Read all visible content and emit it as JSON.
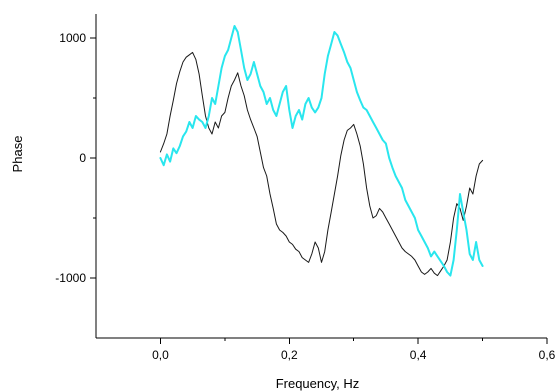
{
  "chart_data": {
    "type": "line",
    "title": "",
    "xlabel": "Frequency, Hz",
    "ylabel": "Phase",
    "xlim": [
      -0.1,
      0.6
    ],
    "ylim": [
      -1500,
      1200
    ],
    "x_ticks": [
      0.0,
      0.2,
      0.4,
      0.6
    ],
    "x_tick_labels": [
      "0,0",
      "0,2",
      "0,4",
      "0,6"
    ],
    "y_ticks": [
      1000,
      0,
      -1000
    ],
    "y_tick_labels": [
      "1000",
      "0",
      "-1000"
    ],
    "grid": false,
    "legend": "none",
    "series": [
      {
        "color": "#1a1a1a",
        "x": [
          0.0,
          0.005,
          0.01,
          0.015,
          0.02,
          0.025,
          0.03,
          0.035,
          0.04,
          0.045,
          0.05,
          0.055,
          0.06,
          0.065,
          0.07,
          0.075,
          0.08,
          0.085,
          0.09,
          0.095,
          0.1,
          0.105,
          0.11,
          0.115,
          0.12,
          0.125,
          0.13,
          0.135,
          0.14,
          0.145,
          0.15,
          0.155,
          0.16,
          0.165,
          0.17,
          0.175,
          0.18,
          0.185,
          0.19,
          0.195,
          0.2,
          0.205,
          0.21,
          0.215,
          0.22,
          0.225,
          0.23,
          0.235,
          0.24,
          0.245,
          0.25,
          0.255,
          0.26,
          0.265,
          0.27,
          0.275,
          0.28,
          0.285,
          0.29,
          0.295,
          0.3,
          0.305,
          0.31,
          0.315,
          0.32,
          0.325,
          0.33,
          0.335,
          0.34,
          0.345,
          0.35,
          0.355,
          0.36,
          0.365,
          0.37,
          0.375,
          0.38,
          0.385,
          0.39,
          0.395,
          0.4,
          0.405,
          0.41,
          0.415,
          0.42,
          0.425,
          0.43,
          0.435,
          0.44,
          0.445,
          0.45,
          0.455,
          0.46,
          0.465,
          0.47,
          0.475,
          0.48,
          0.485,
          0.49,
          0.495,
          0.5
        ],
        "y": [
          50,
          120,
          200,
          350,
          480,
          620,
          720,
          800,
          840,
          860,
          880,
          820,
          700,
          520,
          350,
          250,
          200,
          300,
          250,
          350,
          380,
          500,
          600,
          650,
          710,
          600,
          520,
          400,
          320,
          250,
          180,
          50,
          -80,
          -150,
          -300,
          -420,
          -550,
          -600,
          -620,
          -650,
          -700,
          -720,
          -760,
          -780,
          -830,
          -850,
          -870,
          -800,
          -700,
          -750,
          -870,
          -780,
          -600,
          -450,
          -300,
          -150,
          20,
          150,
          230,
          250,
          280,
          200,
          100,
          -50,
          -250,
          -400,
          -500,
          -480,
          -420,
          -450,
          -500,
          -550,
          -600,
          -650,
          -700,
          -750,
          -780,
          -800,
          -820,
          -850,
          -900,
          -950,
          -970,
          -950,
          -920,
          -960,
          -980,
          -940,
          -900,
          -850,
          -700,
          -500,
          -380,
          -420,
          -520,
          -400,
          -250,
          -300,
          -150,
          -50,
          -20
        ]
      },
      {
        "color": "#29e6ee",
        "x": [
          0.0,
          0.005,
          0.01,
          0.015,
          0.02,
          0.025,
          0.03,
          0.035,
          0.04,
          0.045,
          0.05,
          0.055,
          0.06,
          0.065,
          0.07,
          0.075,
          0.08,
          0.085,
          0.09,
          0.095,
          0.1,
          0.105,
          0.11,
          0.115,
          0.12,
          0.125,
          0.13,
          0.135,
          0.14,
          0.145,
          0.15,
          0.155,
          0.16,
          0.165,
          0.17,
          0.175,
          0.18,
          0.185,
          0.19,
          0.195,
          0.2,
          0.205,
          0.21,
          0.215,
          0.22,
          0.225,
          0.23,
          0.235,
          0.24,
          0.245,
          0.25,
          0.255,
          0.26,
          0.265,
          0.27,
          0.275,
          0.28,
          0.285,
          0.29,
          0.295,
          0.3,
          0.305,
          0.31,
          0.315,
          0.32,
          0.325,
          0.33,
          0.335,
          0.34,
          0.345,
          0.35,
          0.355,
          0.36,
          0.365,
          0.37,
          0.375,
          0.38,
          0.385,
          0.39,
          0.395,
          0.4,
          0.405,
          0.41,
          0.415,
          0.42,
          0.425,
          0.43,
          0.435,
          0.44,
          0.445,
          0.45,
          0.455,
          0.46,
          0.465,
          0.47,
          0.475,
          0.48,
          0.485,
          0.49,
          0.495,
          0.5
        ],
        "y": [
          0,
          -60,
          30,
          -30,
          80,
          40,
          100,
          180,
          220,
          300,
          250,
          350,
          320,
          300,
          250,
          350,
          500,
          450,
          600,
          750,
          850,
          900,
          1000,
          1100,
          1050,
          900,
          750,
          650,
          700,
          800,
          700,
          600,
          550,
          450,
          500,
          400,
          350,
          450,
          550,
          600,
          400,
          250,
          350,
          400,
          320,
          450,
          500,
          420,
          380,
          420,
          500,
          700,
          850,
          950,
          1050,
          1020,
          950,
          880,
          800,
          750,
          650,
          550,
          480,
          420,
          400,
          350,
          300,
          250,
          200,
          150,
          120,
          0,
          -80,
          -150,
          -200,
          -250,
          -350,
          -400,
          -450,
          -500,
          -600,
          -650,
          -700,
          -750,
          -820,
          -780,
          -820,
          -860,
          -900,
          -950,
          -980,
          -850,
          -600,
          -300,
          -450,
          -600,
          -800,
          -850,
          -700,
          -850,
          -900
        ]
      }
    ]
  }
}
